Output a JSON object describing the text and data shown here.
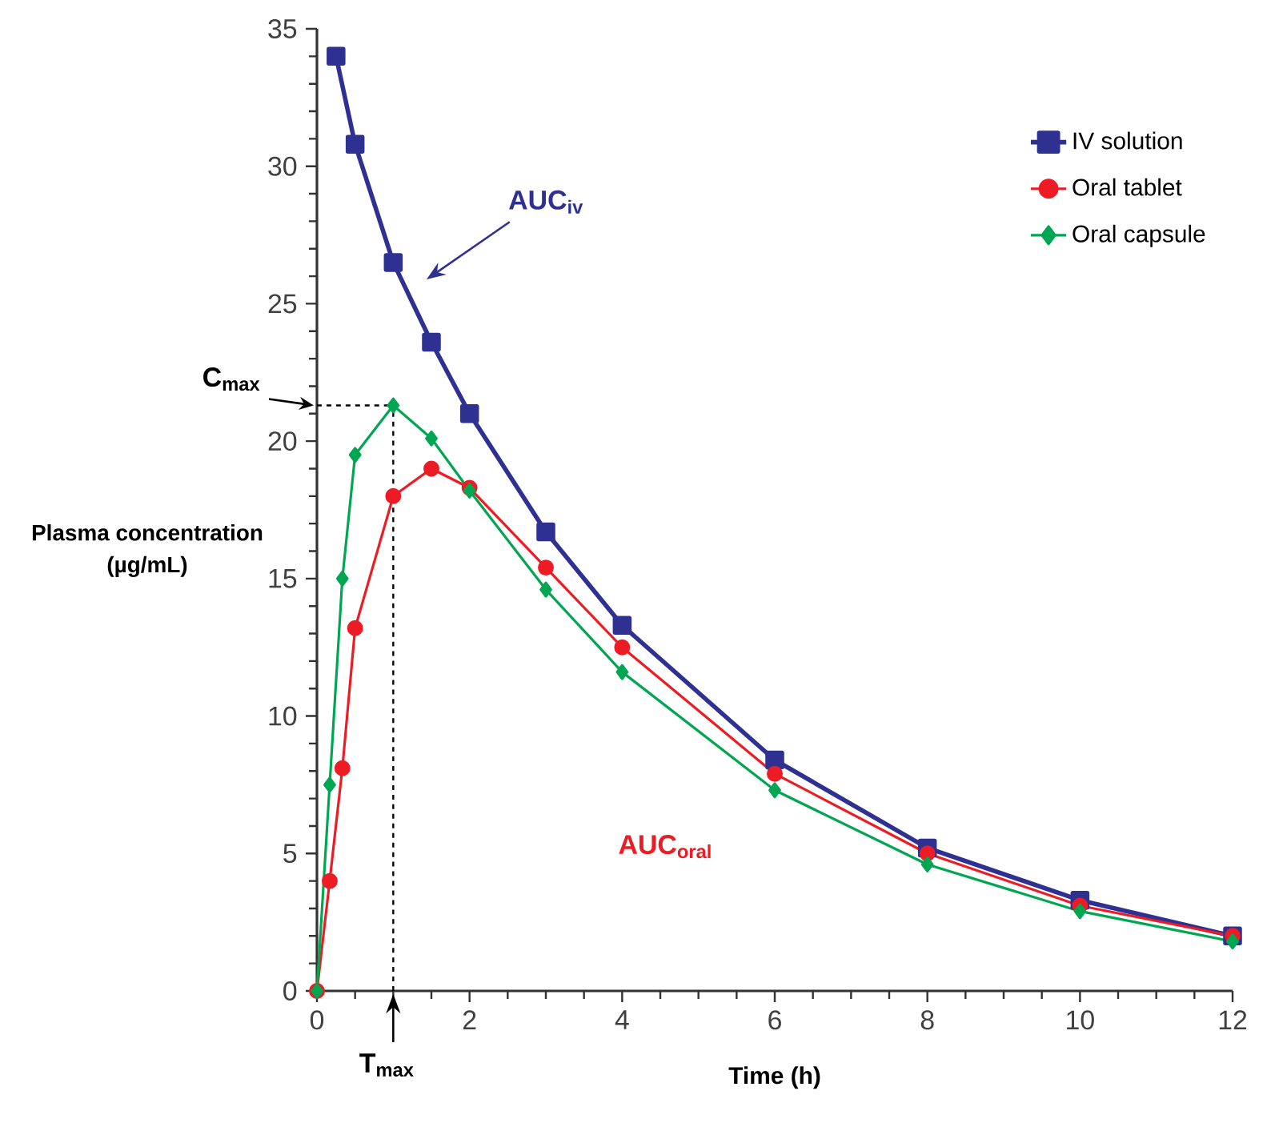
{
  "chart_data": {
    "type": "line",
    "xlabel": "Time (h)",
    "ylabel": "Plasma concentration (µg/mL)",
    "xlim": [
      0,
      12
    ],
    "ylim": [
      0,
      35
    ],
    "xticks": [
      0,
      2,
      4,
      6,
      8,
      10,
      12
    ],
    "yticks": [
      0,
      5,
      10,
      15,
      20,
      25,
      30,
      35
    ],
    "legend": "top right",
    "grid": false,
    "line_style": "solid",
    "series": [
      {
        "name": "IV solution",
        "color": "#2e3192",
        "marker": "square",
        "x": [
          0.25,
          0.5,
          1,
          1.5,
          2,
          3,
          4,
          6,
          8,
          10,
          12
        ],
        "values": [
          34,
          30.8,
          26.5,
          23.6,
          21.0,
          16.7,
          13.3,
          8.4,
          5.2,
          3.3,
          2.0
        ]
      },
      {
        "name": "Oral tablet",
        "color": "#ed1c24",
        "marker": "circle",
        "x": [
          0,
          0.167,
          0.333,
          0.5,
          1,
          1.5,
          2,
          3,
          4,
          6,
          8,
          10,
          12
        ],
        "values": [
          0,
          4.0,
          8.1,
          13.2,
          18.0,
          19.0,
          18.3,
          15.4,
          12.5,
          7.9,
          5.0,
          3.1,
          2.0
        ]
      },
      {
        "name": "Oral capsule",
        "color": "#00a651",
        "marker": "diamond",
        "x": [
          0,
          0.167,
          0.333,
          0.5,
          1,
          1.5,
          2,
          3,
          4,
          6,
          8,
          10,
          12
        ],
        "values": [
          0,
          7.5,
          15.0,
          19.5,
          21.3,
          20.1,
          18.2,
          14.6,
          11.6,
          7.3,
          4.6,
          2.9,
          1.8
        ]
      }
    ],
    "ref_lines": [
      {
        "axis": "x",
        "value": 1,
        "label": "T$_{max}$",
        "line_style": "dashed"
      },
      {
        "axis": "y",
        "value": 21.3,
        "label": "C$_{max}$",
        "line_style": "dashed"
      }
    ],
    "annotations": [
      "AUC$_{iv}$",
      "AUC$_{oral}$"
    ]
  }
}
